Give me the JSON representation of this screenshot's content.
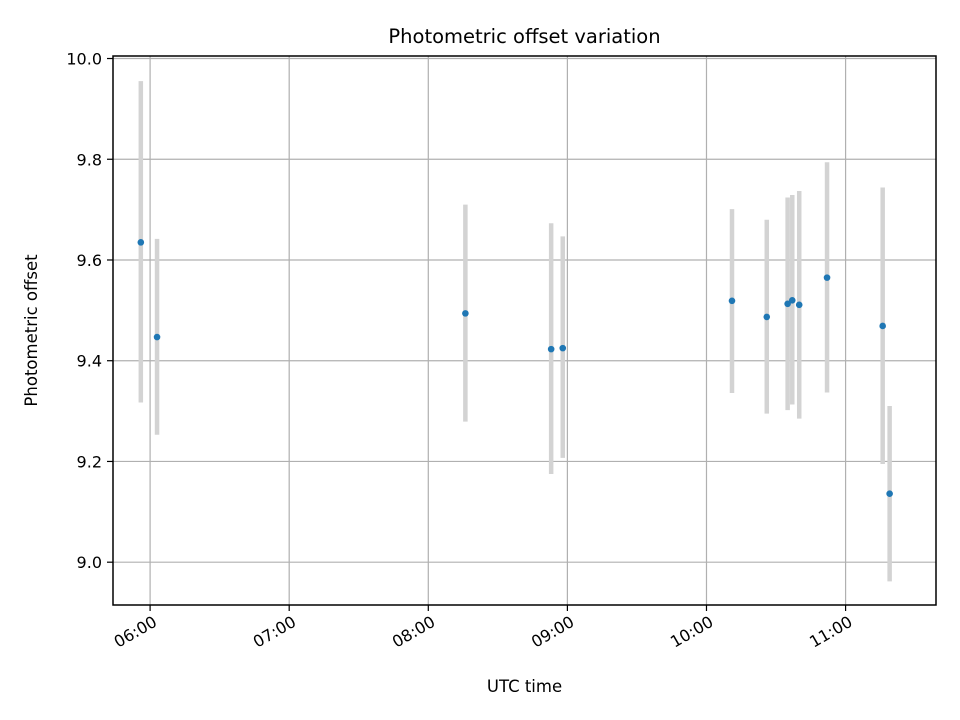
{
  "chart_data": {
    "type": "scatter",
    "title": "Photometric offset variation",
    "xlabel": "UTC time",
    "ylabel": "Photometric offset",
    "x_tick_labels": [
      "06:00",
      "07:00",
      "08:00",
      "09:00",
      "10:00",
      "11:00"
    ],
    "x_ticks": [
      "06:00",
      "07:00",
      "08:00",
      "09:00",
      "10:00",
      "11:00"
    ],
    "xlim": [
      "05:44",
      "11:39"
    ],
    "ylim": [
      8.915,
      10.005
    ],
    "y_ticks": [
      9.0,
      9.2,
      9.4,
      9.6,
      9.8,
      10.0
    ],
    "y_tick_labels": [
      "9.0",
      "9.2",
      "9.4",
      "9.6",
      "9.8",
      "10.0"
    ],
    "grid": true,
    "legend": false,
    "colors": {
      "point": "#1f77b4",
      "errorbar": "#d3d3d3",
      "grid": "#b0b0b0"
    },
    "points": [
      {
        "x": "05:56",
        "y": 9.635,
        "yerr_low": 9.317,
        "yerr_high": 9.955
      },
      {
        "x": "06:03",
        "y": 9.447,
        "yerr_low": 9.253,
        "yerr_high": 9.642
      },
      {
        "x": "08:16",
        "y": 9.494,
        "yerr_low": 9.279,
        "yerr_high": 9.71
      },
      {
        "x": "08:53",
        "y": 9.423,
        "yerr_low": 9.175,
        "yerr_high": 9.673
      },
      {
        "x": "08:58",
        "y": 9.425,
        "yerr_low": 9.207,
        "yerr_high": 9.647
      },
      {
        "x": "10:11",
        "y": 9.519,
        "yerr_low": 9.336,
        "yerr_high": 9.701
      },
      {
        "x": "10:26",
        "y": 9.487,
        "yerr_low": 9.295,
        "yerr_high": 9.68
      },
      {
        "x": "10:35",
        "y": 9.513,
        "yerr_low": 9.302,
        "yerr_high": 9.724
      },
      {
        "x": "10:37",
        "y": 9.52,
        "yerr_low": 9.313,
        "yerr_high": 9.729
      },
      {
        "x": "10:40",
        "y": 9.511,
        "yerr_low": 9.285,
        "yerr_high": 9.737
      },
      {
        "x": "10:52",
        "y": 9.565,
        "yerr_low": 9.337,
        "yerr_high": 9.794
      },
      {
        "x": "11:16",
        "y": 9.469,
        "yerr_low": 9.195,
        "yerr_high": 9.744
      },
      {
        "x": "11:19",
        "y": 9.136,
        "yerr_low": 8.962,
        "yerr_high": 9.31
      }
    ]
  }
}
